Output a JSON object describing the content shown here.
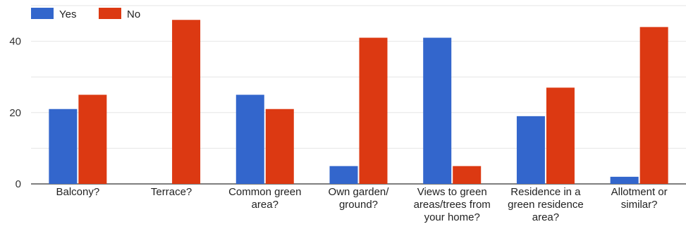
{
  "chart_data": {
    "type": "bar",
    "categories": [
      [
        "Balcony?"
      ],
      [
        "Terrace?"
      ],
      [
        "Common green",
        "area?"
      ],
      [
        "Own garden/",
        "ground?"
      ],
      [
        "Views to green",
        "areas/trees from",
        "your home?"
      ],
      [
        "Residence in a",
        "green residence",
        "area?"
      ],
      [
        "Allotment or",
        "similar?"
      ]
    ],
    "series": [
      {
        "name": "Yes",
        "color": "#3366cc",
        "values": [
          21,
          0,
          25,
          5,
          41,
          19,
          2
        ]
      },
      {
        "name": "No",
        "color": "#dc3912",
        "values": [
          25,
          46,
          21,
          41,
          5,
          27,
          44
        ]
      }
    ],
    "ylim": [
      0,
      50
    ],
    "yticks": [
      0,
      20,
      40
    ],
    "grid": true,
    "legend_position": "top-left"
  }
}
